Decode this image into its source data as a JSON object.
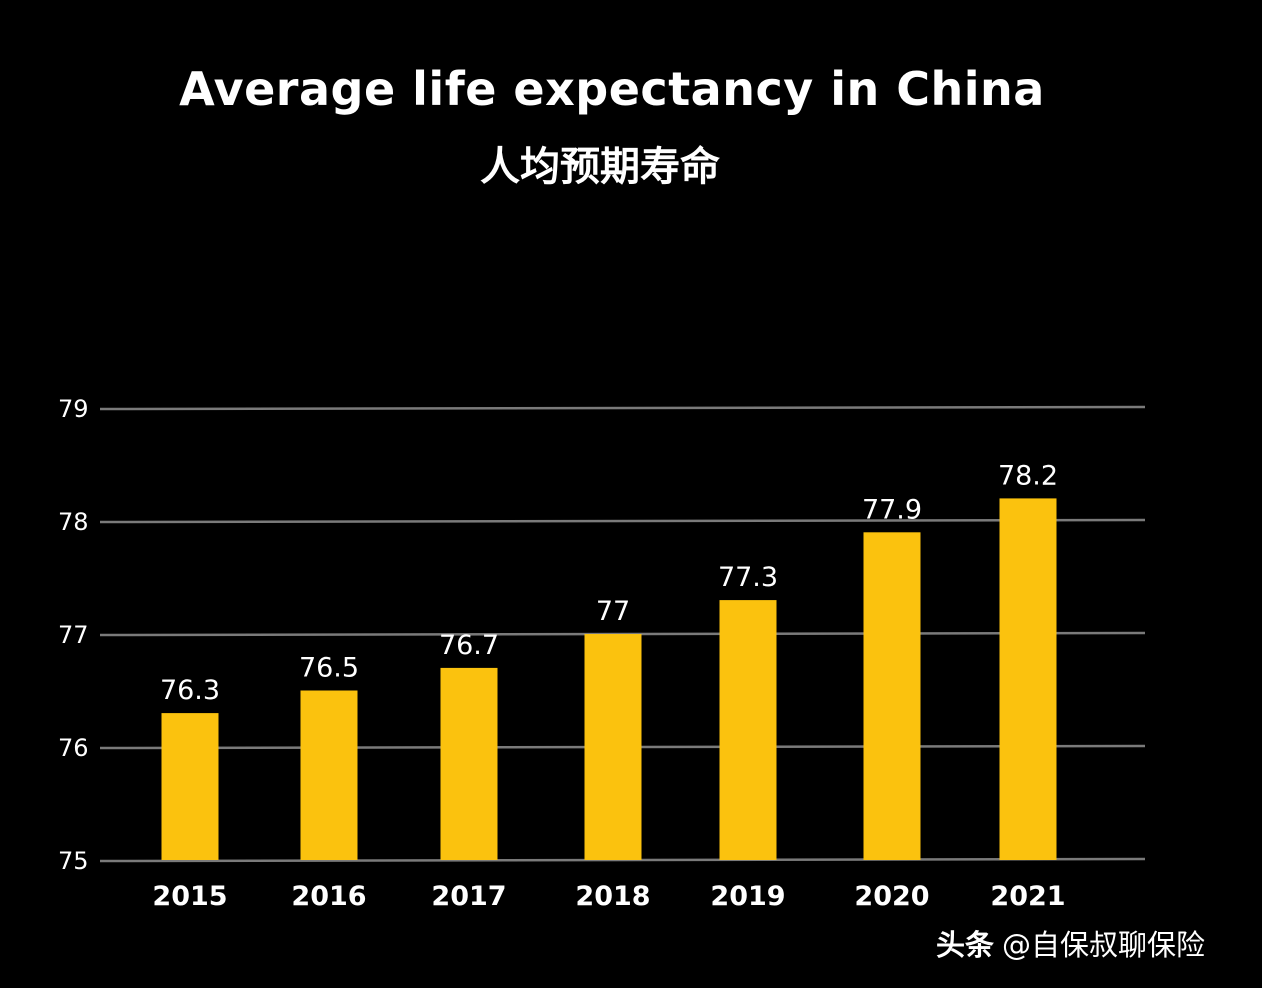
{
  "chart_data": {
    "type": "bar",
    "title": "Average life expectancy in China",
    "subtitle": "人均预期寿命",
    "categories": [
      "2015",
      "2016",
      "2017",
      "2018",
      "2019",
      "2020",
      "2021"
    ],
    "values": [
      76.3,
      76.5,
      76.7,
      77,
      77.3,
      77.9,
      78.2
    ],
    "value_labels": [
      "76.3",
      "76.5",
      "76.7",
      "77",
      "77.3",
      "77.9",
      "78.2"
    ],
    "ylim": [
      75,
      79
    ],
    "yticks": [
      "75",
      "76",
      "77",
      "78",
      "79"
    ],
    "xlabel": "",
    "ylabel": "",
    "grid": true,
    "colors": {
      "bar": "#FBC20E",
      "grid": "#7a7a7a",
      "background": "#000000",
      "text": "#ffffff"
    }
  },
  "watermark": {
    "brand": "头条",
    "handle": "@自保叔聊保险"
  }
}
